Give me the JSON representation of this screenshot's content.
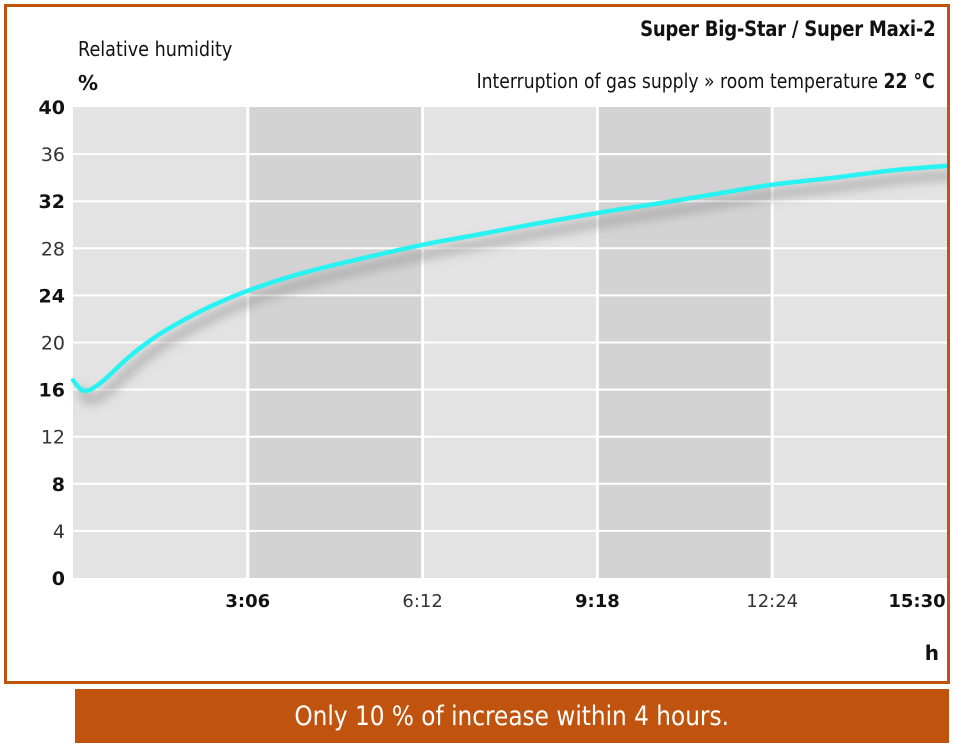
{
  "header": {
    "title": "Super Big-Star / Super Maxi-2",
    "subtitle_prefix": "Interruption of gas supply » room temperature ",
    "subtitle_value": "22 °C"
  },
  "banner": {
    "text": "Only 10 % of increase within 4 hours."
  },
  "colors": {
    "accent": "#c0540f",
    "line": "#28f2f2",
    "band_light": "#e3e3e3",
    "band_dark": "#d3d3d3"
  },
  "chart_data": {
    "type": "line",
    "title": "Super Big-Star / Super Maxi-2",
    "subtitle": "Interruption of gas supply » room temperature 22 °C",
    "ylabel": "Relative humidity",
    "yunit": "%",
    "xunit": "h",
    "xlim": [
      0,
      15.5
    ],
    "ylim": [
      0,
      40
    ],
    "grid": true,
    "y_ticks": [
      {
        "value": 0,
        "label": "0",
        "bold": true
      },
      {
        "value": 4,
        "label": "4",
        "bold": false
      },
      {
        "value": 8,
        "label": "8",
        "bold": true
      },
      {
        "value": 12,
        "label": "12",
        "bold": false
      },
      {
        "value": 16,
        "label": "16",
        "bold": true
      },
      {
        "value": 20,
        "label": "20",
        "bold": false
      },
      {
        "value": 24,
        "label": "24",
        "bold": true
      },
      {
        "value": 28,
        "label": "28",
        "bold": false
      },
      {
        "value": 32,
        "label": "32",
        "bold": true
      },
      {
        "value": 36,
        "label": "36",
        "bold": false
      },
      {
        "value": 40,
        "label": "40",
        "bold": true
      }
    ],
    "x_ticks": [
      {
        "value": 3.1,
        "label": "3:06",
        "bold": true
      },
      {
        "value": 6.2,
        "label": "6:12",
        "bold": false
      },
      {
        "value": 9.3,
        "label": "9:18",
        "bold": true
      },
      {
        "value": 12.4,
        "label": "12:24",
        "bold": false
      },
      {
        "value": 15.5,
        "label": "15:30",
        "bold": true
      }
    ],
    "series": [
      {
        "x": [
          0,
          0.2,
          0.5,
          1.0,
          1.5,
          2.0,
          2.5,
          3.1,
          4.0,
          5.0,
          6.2,
          7.0,
          8.0,
          9.3,
          10.5,
          11.5,
          12.4,
          13.5,
          14.5,
          15.2,
          15.5
        ],
        "values": [
          16.8,
          15.9,
          16.6,
          18.8,
          20.6,
          22.0,
          23.2,
          24.4,
          25.8,
          27.0,
          28.3,
          29.0,
          29.9,
          31.0,
          31.9,
          32.7,
          33.4,
          34.0,
          34.6,
          34.9,
          35.0
        ]
      }
    ]
  }
}
